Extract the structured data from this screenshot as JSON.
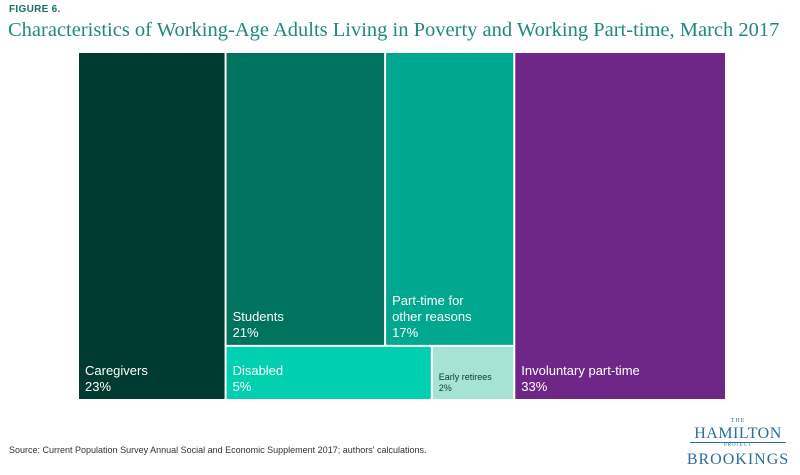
{
  "figure_label": "FIGURE 6.",
  "title": "Characteristics of Working-Age Adults Living in Poverty and Working Part-time, March 2017",
  "source": "Source: Current Population Survey Annual Social and Economic Supplement 2017; authors' calculations.",
  "logo": {
    "the": "THE",
    "hamilton": "HAMILTON",
    "project": "PROJECT",
    "brookings": "BROOKINGS"
  },
  "chart_data": {
    "type": "treemap",
    "items": [
      {
        "label": "Caregivers",
        "value": 23,
        "value_label": "23%",
        "color": "#003b31"
      },
      {
        "label": "Students",
        "value": 21,
        "value_label": "21%",
        "color": "#00735f"
      },
      {
        "label": "Disabled",
        "value": 5,
        "value_label": "5%",
        "color": "#00cfb0"
      },
      {
        "label": "Part-time for other reasons",
        "value": 17,
        "value_label": "17%",
        "color": "#00a88f"
      },
      {
        "label": "Early retirees",
        "value": 2,
        "value_label": "2%",
        "color": "#a7e2d7"
      },
      {
        "label": "Involuntary part-time",
        "value": 33,
        "value_label": "33%",
        "color": "#6e2786"
      }
    ]
  }
}
